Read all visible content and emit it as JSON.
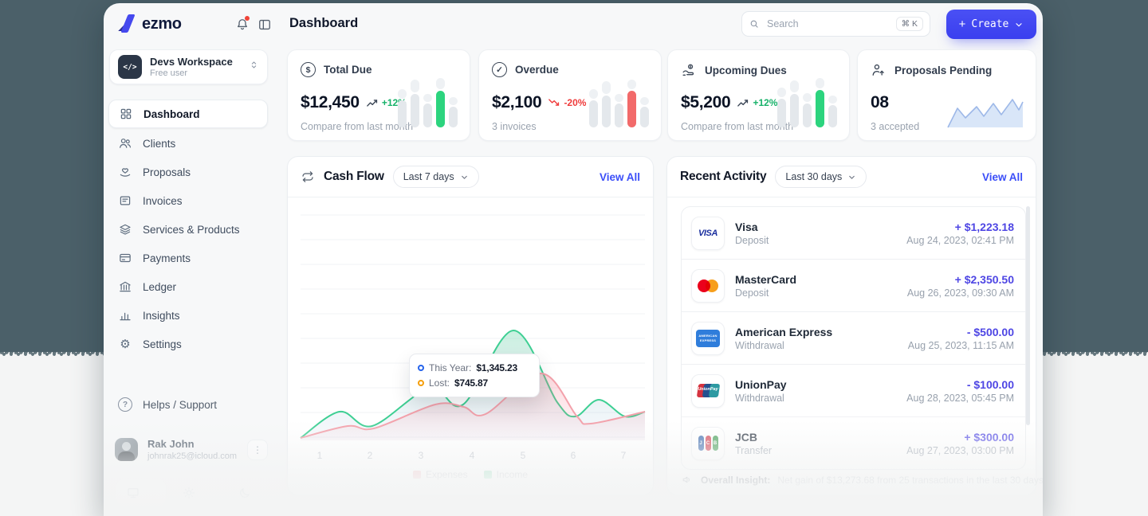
{
  "header": {
    "logo_text": "ezmo",
    "page_title": "Dashboard",
    "search": {
      "placeholder": "Search",
      "shortcut": "⌘ K",
      "icon": "search-icon"
    },
    "create_label": "Create",
    "icons": [
      "bell-icon",
      "panel-toggle-icon"
    ]
  },
  "sidebar": {
    "workspace": {
      "icon_glyph": "</>",
      "name": "Devs Workspace",
      "plan": "Free user"
    },
    "items": [
      {
        "label": "Dashboard",
        "icon": "grid-icon",
        "active": true
      },
      {
        "label": "Clients",
        "icon": "users-icon"
      },
      {
        "label": "Proposals",
        "icon": "hand-heart-icon"
      },
      {
        "label": "Invoices",
        "icon": "invoice-icon"
      },
      {
        "label": "Services & Products",
        "icon": "layers-icon"
      },
      {
        "label": "Payments",
        "icon": "credit-card-icon"
      },
      {
        "label": "Ledger",
        "icon": "bank-icon"
      },
      {
        "label": "Insights",
        "icon": "bar-chart-icon"
      },
      {
        "label": "Settings",
        "icon": "gear-icon",
        "gear_glyph": "⚙"
      }
    ],
    "support_label": "Helps / Support",
    "user": {
      "name": "Rak John",
      "email": "johnrak25@icloud.com"
    },
    "theme_options": [
      "system",
      "light",
      "dark"
    ]
  },
  "stats": [
    {
      "icon": "dollar-circle-icon",
      "icon_glyph": "$",
      "title": "Total Due",
      "value": "$12,450",
      "trend": "+12%",
      "trend_dir": "up",
      "trend_color": "#17b26a",
      "subtitle": "Compare from last month",
      "highlight": "#2cd47e"
    },
    {
      "icon": "check-circle-icon",
      "icon_glyph": "✓",
      "title": "Overdue",
      "value": "$2,100",
      "trend": "-20%",
      "trend_dir": "down",
      "trend_color": "#ef3b3b",
      "subtitle": "3 invoices",
      "highlight": "#f26a6a"
    },
    {
      "icon": "hand-coin-icon",
      "title": "Upcoming Dues",
      "value": "$5,200",
      "trend": "+12%",
      "trend_dir": "up",
      "trend_color": "#17b26a",
      "subtitle": "Compare from last month",
      "highlight": "#2cd47e"
    },
    {
      "icon": "user-up-icon",
      "title": "Proposals Pending",
      "value": "08",
      "subtitle": "3 accepted"
    }
  ],
  "cash_flow": {
    "icon": "sync-icon",
    "title": "Cash Flow",
    "range_label": "Last 7 days",
    "view_all": "View All",
    "x_labels": [
      "1",
      "2",
      "3",
      "4",
      "5",
      "6",
      "7"
    ],
    "legend": [
      {
        "label": "Expenses",
        "color": "#f5a7b0"
      },
      {
        "label": "Income",
        "color": "#6fd6a6"
      }
    ],
    "tooltip": {
      "series1_label": "This Year:",
      "series1_value": "$1,345.23",
      "series1_color": "#2563eb",
      "series2_label": "Lost:",
      "series2_value": "$745.87",
      "series2_color": "#f59e0b"
    }
  },
  "chart_data": {
    "type": "area",
    "title": "Cash Flow",
    "x_ticks": [
      1,
      2,
      3,
      4,
      5,
      6,
      7
    ],
    "ylim": [
      0,
      100
    ],
    "grid": true,
    "legend_position": "bottom",
    "series": [
      {
        "name": "Income",
        "color": "#3ecf93",
        "x": [
          0,
          0.113,
          0.208,
          0.375,
          0.472,
          0.618,
          0.745,
          0.798,
          0.866,
          0.942,
          1
        ],
        "y": [
          1,
          12,
          6,
          22,
          15,
          46,
          16,
          10,
          17,
          10,
          12
        ]
      },
      {
        "name": "Expenses",
        "color": "#f3a1ab",
        "x": [
          0,
          0.137,
          0.213,
          0.391,
          0.474,
          0.537,
          0.699,
          0.803,
          0.842,
          1
        ],
        "y": [
          1,
          6,
          5,
          15,
          14,
          11,
          28,
          10,
          7,
          12
        ]
      }
    ]
  },
  "recent_activity": {
    "title": "Recent Activity",
    "range_label": "Last 30 days",
    "view_all": "View All",
    "transactions": [
      {
        "brand": "visa",
        "name": "Visa",
        "type": "Deposit",
        "amount": "+ $1,223.18",
        "date": "Aug 24, 2023, 02:41 PM"
      },
      {
        "brand": "mastercard",
        "name": "MasterCard",
        "type": "Deposit",
        "amount": "+ $2,350.50",
        "date": "Aug 26, 2023, 09:30 AM"
      },
      {
        "brand": "amex",
        "name": "American Express",
        "type": "Withdrawal",
        "amount": "- $500.00",
        "date": "Aug 25, 2023, 11:15 AM"
      },
      {
        "brand": "unionpay",
        "name": "UnionPay",
        "type": "Withdrawal",
        "amount": "- $100.00",
        "date": "Aug 28, 2023, 05:45 PM"
      },
      {
        "brand": "jcb",
        "name": "JCB",
        "type": "Transfer",
        "amount": "+ $300.00",
        "date": "Aug 27, 2023, 03:00 PM"
      }
    ],
    "insight": {
      "label": "Overall Insight:",
      "text": "Net gain of $13,273.68 from 25 transactions in the last 30 days."
    }
  },
  "brand_assets": {
    "visa": "VISA",
    "amex_top": "AMERICAN",
    "amex_bottom": "EXPRESS",
    "unionpay": "UnionPay",
    "jcb_letters": [
      "J",
      "C",
      "B"
    ]
  }
}
